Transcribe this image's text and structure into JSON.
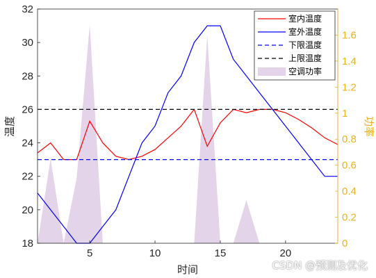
{
  "chart_data": {
    "type": "line",
    "x": [
      1,
      2,
      3,
      4,
      5,
      6,
      7,
      8,
      9,
      10,
      11,
      12,
      13,
      14,
      15,
      16,
      17,
      18,
      19,
      20,
      21,
      22,
      23,
      24
    ],
    "xlim": [
      1,
      24
    ],
    "xticks": [
      5,
      10,
      15,
      20
    ],
    "xlabel": "时间",
    "ylabel_left": "温度",
    "ylim_left": [
      18,
      32
    ],
    "yticks_left": [
      18,
      20,
      22,
      24,
      26,
      28,
      30,
      32
    ],
    "ylabel_right": "功率",
    "ylim_right": [
      0,
      1.8
    ],
    "yticks_right": [
      0,
      0.2,
      0.4,
      0.6,
      0.8,
      1,
      1.2,
      1.4,
      1.6
    ],
    "series": [
      {
        "name": "室内温度",
        "axis": "left",
        "kind": "line",
        "color": "#ff0000",
        "dash": "solid",
        "values": [
          23.4,
          24.0,
          23.0,
          23.0,
          25.3,
          24.0,
          23.2,
          23.0,
          23.2,
          23.6,
          24.3,
          25.0,
          26.0,
          23.8,
          25.2,
          26.0,
          25.8,
          26.0,
          26.0,
          25.8,
          25.4,
          24.9,
          24.3,
          23.9
        ]
      },
      {
        "name": "室外温度",
        "axis": "left",
        "kind": "line",
        "color": "#0000ff",
        "dash": "solid",
        "values": [
          21.0,
          20.0,
          19.0,
          18.0,
          18.0,
          19.0,
          20.0,
          22.0,
          24.0,
          25.0,
          27.0,
          28.0,
          30.0,
          31.0,
          31.0,
          29.0,
          28.0,
          27.0,
          26.0,
          25.0,
          24.0,
          23.0,
          22.0,
          22.0
        ]
      },
      {
        "name": "下限温度",
        "axis": "left",
        "kind": "line",
        "color": "#0000ff",
        "dash": "dashed",
        "values": [
          23,
          23,
          23,
          23,
          23,
          23,
          23,
          23,
          23,
          23,
          23,
          23,
          23,
          23,
          23,
          23,
          23,
          23,
          23,
          23,
          23,
          23,
          23,
          23
        ]
      },
      {
        "name": "上限温度",
        "axis": "left",
        "kind": "line",
        "color": "#000000",
        "dash": "dashed",
        "values": [
          26,
          26,
          26,
          26,
          26,
          26,
          26,
          26,
          26,
          26,
          26,
          26,
          26,
          26,
          26,
          26,
          26,
          26,
          26,
          26,
          26,
          26,
          26,
          26
        ]
      },
      {
        "name": "空调功率",
        "axis": "right",
        "kind": "area",
        "color": "#e3d4e9",
        "values": [
          0,
          0.65,
          0,
          0.5,
          1.68,
          0,
          0,
          0,
          0,
          0,
          0,
          0,
          0,
          1.6,
          0,
          0,
          0.33,
          0,
          0,
          0,
          0,
          0,
          0,
          0
        ]
      }
    ],
    "legend_location": "top-right",
    "right_axis_color": "#edb120",
    "grid": false
  },
  "watermark": "CSDN @预测及优化"
}
